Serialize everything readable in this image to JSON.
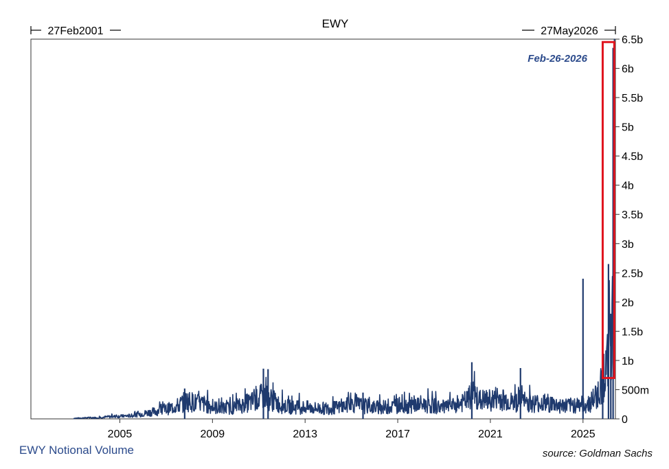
{
  "chart_data": {
    "type": "line",
    "title": "EWY",
    "range_start_label": "27Feb2001",
    "range_end_label": "27May2026",
    "annotation": "Feb-26-2026",
    "legend": "EWY Notional Volume",
    "source": "source: Goldman Sachs",
    "xlim": [
      2001.16,
      2026.4
    ],
    "ylim": [
      0,
      6.5
    ],
    "x_ticks": [
      2005,
      2009,
      2013,
      2017,
      2021,
      2025
    ],
    "x_tick_labels": [
      "2005",
      "2009",
      "2013",
      "2017",
      "2021",
      "2025"
    ],
    "y_ticks": [
      0,
      0.5,
      1,
      1.5,
      2,
      2.5,
      3,
      3.5,
      4,
      4.5,
      5,
      5.5,
      6,
      6.5
    ],
    "y_tick_labels": [
      "0",
      "500m",
      "1b",
      "1.5b",
      "2b",
      "2.5b",
      "3b",
      "3.5b",
      "4b",
      "4.5b",
      "5b",
      "5.5b",
      "6b",
      "6.5b"
    ],
    "series": [
      {
        "name": "EWY Notional Volume",
        "color": "#1f3a6e",
        "x": [
          2001.2,
          2002.0,
          2003.0,
          2003.5,
          2004.0,
          2004.5,
          2005.0,
          2005.5,
          2006.0,
          2006.5,
          2007.0,
          2007.5,
          2007.9,
          2008.3,
          2008.7,
          2009.0,
          2009.5,
          2010.0,
          2010.5,
          2010.9,
          2011.2,
          2011.6,
          2012.0,
          2012.5,
          2013.0,
          2013.5,
          2014.0,
          2014.5,
          2015.0,
          2015.5,
          2016.0,
          2016.5,
          2017.0,
          2017.5,
          2018.0,
          2018.5,
          2019.0,
          2019.5,
          2020.0,
          2020.2,
          2020.5,
          2021.0,
          2021.3,
          2021.7,
          2022.0,
          2022.3,
          2022.7,
          2023.0,
          2023.5,
          2024.0,
          2024.5,
          2024.9,
          2025.0,
          2025.3,
          2025.6,
          2025.8,
          2025.95,
          2026.05,
          2026.15,
          2026.3,
          2026.37
        ],
        "values": [
          0.0,
          0.0,
          0.01,
          0.02,
          0.02,
          0.04,
          0.05,
          0.06,
          0.1,
          0.14,
          0.18,
          0.25,
          0.35,
          0.3,
          0.28,
          0.22,
          0.2,
          0.22,
          0.3,
          0.35,
          0.45,
          0.35,
          0.25,
          0.22,
          0.22,
          0.2,
          0.2,
          0.22,
          0.28,
          0.25,
          0.22,
          0.22,
          0.25,
          0.25,
          0.28,
          0.25,
          0.22,
          0.25,
          0.35,
          0.45,
          0.35,
          0.35,
          0.4,
          0.35,
          0.3,
          0.35,
          0.3,
          0.3,
          0.3,
          0.25,
          0.25,
          0.3,
          0.25,
          0.3,
          0.45,
          0.65,
          0.9,
          1.0,
          1.5,
          2.1,
          6.35
        ],
        "spikes": [
          {
            "x": 2007.8,
            "value": 0.52
          },
          {
            "x": 2011.2,
            "value": 0.86
          },
          {
            "x": 2011.4,
            "value": 0.85
          },
          {
            "x": 2015.5,
            "value": 0.45
          },
          {
            "x": 2020.2,
            "value": 0.97
          },
          {
            "x": 2022.3,
            "value": 0.87
          },
          {
            "x": 2025.0,
            "value": 2.4
          },
          {
            "x": 2025.85,
            "value": 1.4
          },
          {
            "x": 2026.1,
            "value": 2.65
          },
          {
            "x": 2026.2,
            "value": 1.8
          },
          {
            "x": 2026.3,
            "value": 6.35
          }
        ]
      }
    ],
    "highlight_box": {
      "x0": 2025.85,
      "x1": 2026.35,
      "y0": 0.7,
      "y1": 6.45,
      "color": "#e0141e"
    }
  }
}
